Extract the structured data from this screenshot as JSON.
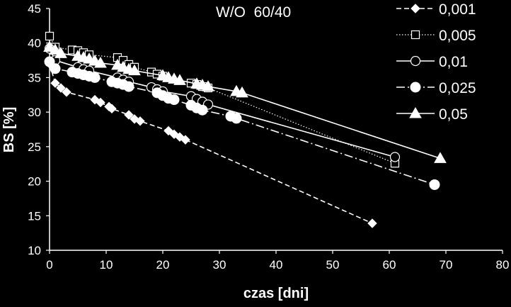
{
  "chart_data": {
    "type": "scatter",
    "title": "W/O  60/40",
    "xlabel": "czas [dni]",
    "ylabel": "BS [%]",
    "xlim": [
      0,
      80
    ],
    "ylim": [
      10,
      45
    ],
    "x_ticks": [
      "0",
      "10",
      "20",
      "30",
      "40",
      "50",
      "60",
      "70",
      "80"
    ],
    "y_ticks": [
      "10",
      "15",
      "20",
      "25",
      "30",
      "35",
      "40",
      "45"
    ],
    "grid": false,
    "legend_position": "top-right",
    "series": [
      {
        "name": "0,001",
        "marker": "diamond",
        "line": "dashed",
        "points": [
          [
            0,
            37.0
          ],
          [
            1,
            34.2
          ],
          [
            2,
            33.5
          ],
          [
            3,
            32.9
          ],
          [
            8,
            31.8
          ],
          [
            9,
            31.4
          ],
          [
            10.5,
            30.8
          ],
          [
            11,
            30.5
          ],
          [
            14,
            29.6
          ],
          [
            15,
            29.0
          ],
          [
            16,
            28.7
          ],
          [
            21,
            27.3
          ],
          [
            22,
            26.8
          ],
          [
            23,
            26.4
          ],
          [
            24,
            26.0
          ],
          [
            57,
            13.9
          ]
        ]
      },
      {
        "name": "0,005",
        "marker": "square-open",
        "line": "dotted",
        "points": [
          [
            0,
            41.0
          ],
          [
            1,
            39.4
          ],
          [
            4,
            39.0
          ],
          [
            5,
            38.9
          ],
          [
            6,
            38.6
          ],
          [
            7,
            38.3
          ],
          [
            12,
            37.9
          ],
          [
            13,
            37.5
          ],
          [
            14,
            36.9
          ],
          [
            15,
            36.5
          ],
          [
            18,
            35.8
          ],
          [
            19,
            35.5
          ],
          [
            20,
            35.2
          ],
          [
            25,
            34.2
          ],
          [
            26,
            34.0
          ],
          [
            27,
            33.7
          ],
          [
            28,
            33.5
          ],
          [
            61,
            22.6
          ]
        ]
      },
      {
        "name": "0,01",
        "marker": "circle-open",
        "line": "solid",
        "points": [
          [
            0,
            39.2
          ],
          [
            1,
            37.5
          ],
          [
            5,
            36.5
          ],
          [
            6,
            36.2
          ],
          [
            7,
            36.0
          ],
          [
            12,
            35.0
          ],
          [
            13,
            34.7
          ],
          [
            14,
            34.4
          ],
          [
            18,
            33.6
          ],
          [
            19,
            33.3
          ],
          [
            20,
            33.0
          ],
          [
            25,
            32.3
          ],
          [
            26,
            31.9
          ],
          [
            27,
            31.5
          ],
          [
            28,
            31.1
          ],
          [
            61,
            23.5
          ]
        ]
      },
      {
        "name": "0,025",
        "marker": "circle-filled",
        "line": "dash-dot",
        "points": [
          [
            0,
            37.3
          ],
          [
            1,
            36.3
          ],
          [
            4,
            35.8
          ],
          [
            5,
            35.6
          ],
          [
            6,
            35.4
          ],
          [
            7,
            35.2
          ],
          [
            8,
            35.0
          ],
          [
            11,
            34.4
          ],
          [
            12,
            34.2
          ],
          [
            13,
            34.0
          ],
          [
            14,
            33.7
          ],
          [
            19,
            32.8
          ],
          [
            20,
            32.4
          ],
          [
            21,
            32.0
          ],
          [
            22,
            31.8
          ],
          [
            25,
            31.0
          ],
          [
            26,
            30.6
          ],
          [
            27,
            30.3
          ],
          [
            32,
            29.4
          ],
          [
            33,
            29.1
          ],
          [
            68,
            19.5
          ]
        ]
      },
      {
        "name": "0,05",
        "marker": "triangle",
        "line": "solid",
        "points": [
          [
            0,
            39.4
          ],
          [
            1,
            39.0
          ],
          [
            2,
            38.5
          ],
          [
            5,
            38.1
          ],
          [
            6,
            37.9
          ],
          [
            7,
            37.7
          ],
          [
            8,
            37.4
          ],
          [
            9,
            37.1
          ],
          [
            12,
            36.8
          ],
          [
            13,
            36.5
          ],
          [
            14,
            36.2
          ],
          [
            15,
            36.0
          ],
          [
            20,
            35.3
          ],
          [
            21,
            35.0
          ],
          [
            22,
            34.8
          ],
          [
            23,
            34.6
          ],
          [
            26,
            34.1
          ],
          [
            27,
            33.9
          ],
          [
            28,
            33.7
          ],
          [
            33,
            33.0
          ],
          [
            34,
            32.8
          ],
          [
            69,
            23.3
          ]
        ]
      }
    ]
  }
}
